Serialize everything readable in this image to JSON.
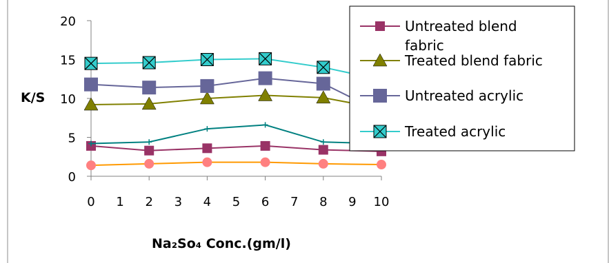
{
  "chart_data": {
    "type": "line",
    "title": "",
    "xlabel": "Na₂So₄ Conc.(gm/l)",
    "ylabel": "K/S",
    "xlim": [
      0,
      10
    ],
    "ylim": [
      0,
      20
    ],
    "x_ticks": [
      "0",
      "1",
      "2",
      "3",
      "4",
      "5",
      "6",
      "7",
      "8",
      "9",
      "10"
    ],
    "y_ticks": [
      "0",
      "5",
      "10",
      "15",
      "20"
    ],
    "grid": false,
    "legend": "right",
    "x": [
      0,
      2,
      4,
      6,
      8,
      10
    ],
    "series": [
      {
        "name": "Untreated blend fabric",
        "color": "#993366",
        "marker": "square",
        "values": [
          3.9,
          3.3,
          3.6,
          3.9,
          3.4,
          3.2
        ]
      },
      {
        "name": "Treated blend fabric",
        "color": "#808000",
        "marker": "triangle",
        "values": [
          9.2,
          9.3,
          10.0,
          10.4,
          10.1,
          8.7
        ]
      },
      {
        "name": "Untreated acrylic",
        "color": "#666699",
        "marker": "square-large",
        "values": [
          11.8,
          11.4,
          11.6,
          12.6,
          11.9,
          8.2
        ]
      },
      {
        "name": "Treated acrylic",
        "color": "#33CCCC",
        "marker": "boxed-x",
        "values": [
          14.5,
          14.6,
          15.0,
          15.1,
          14.0,
          12.4
        ]
      },
      {
        "name": "",
        "color": "#008080",
        "marker": "plus",
        "values": [
          4.2,
          4.4,
          6.1,
          6.6,
          4.4,
          4.2
        ]
      },
      {
        "name": "",
        "color": "#FF9900",
        "marker": "circle",
        "values": [
          1.4,
          1.6,
          1.8,
          1.8,
          1.6,
          1.5
        ]
      }
    ]
  }
}
